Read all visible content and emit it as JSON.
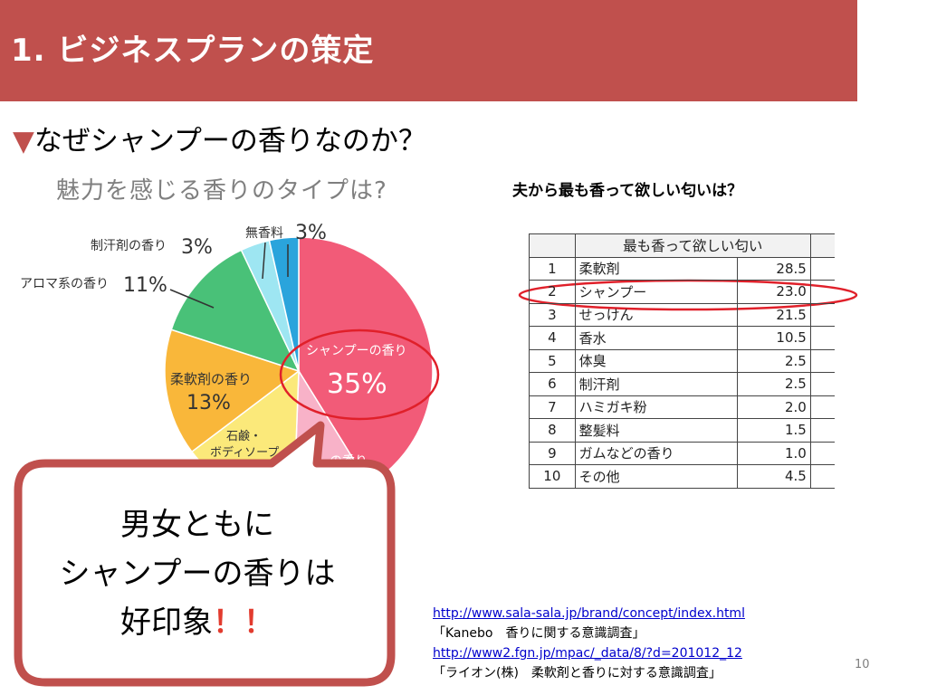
{
  "header": {
    "title": "1. ビジネスプランの策定"
  },
  "subtitle": {
    "marker": "▼",
    "text": "なぜシャンプーの香りなのか？"
  },
  "pie": {
    "title": "魅力を感じる香りのタイプは?",
    "slices": [
      {
        "label": "シャンプーの香り",
        "value": "35%",
        "color": "#f25b78"
      },
      {
        "label": "の香り",
        "value": "",
        "color": "#f8b2c8"
      },
      {
        "label": "石鹸・ボディソープ",
        "value": "",
        "color": "#fbe97a"
      },
      {
        "label": "柔軟剤の香り",
        "value": "13%",
        "color": "#f9b73a"
      },
      {
        "label": "アロマ系の香り",
        "value": "11%",
        "color": "#49c178"
      },
      {
        "label": "制汗剤の香り",
        "value": "3%",
        "color": "#9ee6f2"
      },
      {
        "label": "無香料",
        "value": "3%",
        "color": "#2aa4dc"
      }
    ],
    "label_soap_line1": "石鹸・",
    "label_soap_line2": "ボディソープ",
    "label_soft_line1": "柔軟剤の香り",
    "label_soft_value": "13%",
    "label_shampoo_name": "シャンプーの香り",
    "label_shampoo_value": "35%",
    "label_other": "の香り"
  },
  "table": {
    "title": "夫から最も香って欲しい匂いは？",
    "header": "最も香って欲しい匂い",
    "rows": [
      {
        "no": "1",
        "label": "柔軟剤",
        "value": "28.5"
      },
      {
        "no": "2",
        "label": "シャンプー",
        "value": "23.0"
      },
      {
        "no": "3",
        "label": "せっけん",
        "value": "21.5"
      },
      {
        "no": "4",
        "label": "香水",
        "value": "10.5"
      },
      {
        "no": "5",
        "label": "体臭",
        "value": "2.5"
      },
      {
        "no": "6",
        "label": "制汗剤",
        "value": "2.5"
      },
      {
        "no": "7",
        "label": "ハミガキ粉",
        "value": "2.0"
      },
      {
        "no": "8",
        "label": "整髪料",
        "value": "1.5"
      },
      {
        "no": "9",
        "label": "ガムなどの香り",
        "value": "1.0"
      },
      {
        "no": "10",
        "label": "その他",
        "value": "4.5"
      }
    ]
  },
  "callout": {
    "line1": "男女ともに",
    "line2": "シャンプーの香りは",
    "line3": "好印象",
    "emphasis": "！！"
  },
  "references": {
    "url1": "http://www.sala-sala.jp/brand/concept/index.html",
    "note1": "「Kanebo　香りに関する意識調査」",
    "url2": "http://www2.fgn.jp/mpac/_data/8/?d=201012_12",
    "note2": "「ライオン(株)　柔軟剤と香りに対する意識調査」"
  },
  "page_number": "10",
  "colors": {
    "accent": "#c0504d",
    "highlight_ring": "#e0202a",
    "link": "#0000cc"
  }
}
